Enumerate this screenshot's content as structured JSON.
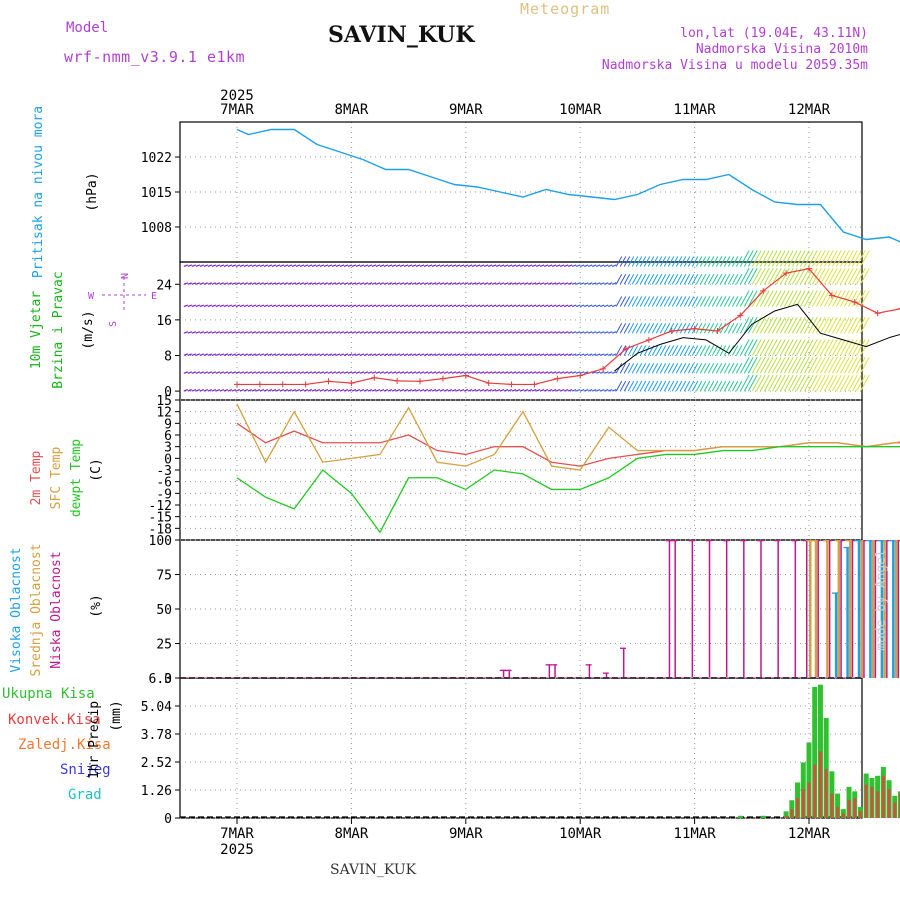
{
  "header": {
    "title": "SAVIN_KUK",
    "model_label": "Model",
    "model_name": "wrf-nmm_v3.9.1 e1km",
    "meteogram_label": "Meteogram",
    "lonlat": "lon,lat (19.04E, 43.11N)",
    "elevation": "Nadmorska Visina 2010m",
    "model_elevation": "Nadmorska Visina u modelu 2059.35m",
    "footer_title": "SAVIN_KUK",
    "credit": "made by Angel"
  },
  "colors": {
    "pressure": "#1ea0e6",
    "wind_label": "#18b418",
    "wind_speed": "#e83c3c",
    "wind_gust": "#000000",
    "temp_2m": "#e65050",
    "temp_sfc": "#d4a040",
    "temp_dew": "#22c822",
    "cloud_high": "#1ea0e6",
    "cloud_mid": "#d4a040",
    "cloud_low": "#c01890",
    "precip_total": "#30c030",
    "precip_conv": "#e84040",
    "precip_frozen": "#f07830",
    "precip_snow": "#3a3ae0",
    "precip_hail": "#20c0c0",
    "legend_purple": "#b040d0",
    "meteogram_color": "#e0c080"
  },
  "time_axis": {
    "year": "2025",
    "days": [
      "7MAR",
      "8MAR",
      "9MAR",
      "10MAR",
      "11MAR",
      "12MAR"
    ]
  },
  "compass": {
    "n": "N",
    "e": "E",
    "w": "W",
    "s": "S"
  },
  "chart_data": [
    {
      "type": "line",
      "name": "pressure",
      "label": "Pritisak na nivou mora",
      "ylabel": "(hPa)",
      "yticks": [
        1008,
        1015,
        1022
      ],
      "ylim": [
        1001,
        1029
      ],
      "x_days": [
        0,
        0.1,
        0.3,
        0.5,
        0.7,
        0.9,
        1.1,
        1.3,
        1.5,
        1.7,
        1.9,
        2.1,
        2.3,
        2.5,
        2.7,
        2.9,
        3.1,
        3.3,
        3.5,
        3.7,
        3.9,
        4.1,
        4.3,
        4.5,
        4.7,
        4.9,
        5.1,
        5.3,
        5.5,
        5.7,
        5.9
      ],
      "values": [
        1027.5,
        1026.5,
        1027.5,
        1027.5,
        1024.5,
        1023,
        1021.5,
        1019.5,
        1019.5,
        1018,
        1016.5,
        1016,
        1015,
        1014,
        1015.5,
        1014.5,
        1014,
        1013.5,
        1014.5,
        1016.5,
        1017.5,
        1017.5,
        1018.5,
        1015.5,
        1013,
        1012.5,
        1012.5,
        1007,
        1005.5,
        1006,
        1004
      ]
    },
    {
      "type": "line",
      "name": "wind",
      "label": "10m Vjetar Brzina i Pravac",
      "ylabel": "(m/s)",
      "yticks": [
        0,
        8,
        16,
        24
      ],
      "ylim": [
        -2,
        29
      ],
      "x_days": [
        0,
        0.2,
        0.4,
        0.6,
        0.8,
        1.0,
        1.2,
        1.4,
        1.6,
        1.8,
        2.0,
        2.2,
        2.4,
        2.6,
        2.8,
        3.0,
        3.2,
        3.4,
        3.6,
        3.8,
        4.0,
        4.2,
        4.4,
        4.6,
        4.8,
        5.0,
        5.2,
        5.4,
        5.6,
        5.8,
        5.95
      ],
      "speed": [
        1.5,
        1.5,
        1.5,
        1.5,
        2.2,
        1.8,
        3,
        2.3,
        2.2,
        2.8,
        3.5,
        1.8,
        1.5,
        1.5,
        2.8,
        3.5,
        5,
        9.5,
        11.5,
        13.5,
        14,
        13.5,
        17,
        22.5,
        26.5,
        27.5,
        21.5,
        20,
        17.5,
        18.5,
        18
      ],
      "gust_x_days": [
        3.3,
        3.5,
        3.7,
        3.9,
        4.1,
        4.3,
        4.5,
        4.7,
        4.9,
        5.1,
        5.3,
        5.5,
        5.7,
        5.9,
        5.95
      ],
      "gust": [
        4.5,
        8.5,
        10.5,
        12,
        11.5,
        8.5,
        15,
        18,
        19.5,
        13,
        11.5,
        10,
        12,
        13.5,
        14
      ]
    },
    {
      "type": "line",
      "name": "temperature",
      "label": "2m Temp / SFC Temp / dewpt Temp",
      "ylabel": "(C)",
      "yticks": [
        -18,
        -15,
        -12,
        -9,
        -6,
        -3,
        0,
        3,
        6,
        9,
        12,
        15
      ],
      "ylim": [
        -21,
        15
      ],
      "x_days": [
        0,
        0.25,
        0.5,
        0.75,
        1.0,
        1.25,
        1.5,
        1.75,
        2.0,
        2.25,
        2.5,
        2.75,
        3.0,
        3.25,
        3.5,
        3.75,
        4.0,
        4.25,
        4.5,
        4.75,
        5.0,
        5.25,
        5.5,
        5.75,
        5.95
      ],
      "series": [
        {
          "name": "2m Temp",
          "values": [
            9,
            4,
            7,
            4,
            4,
            4,
            6,
            2,
            1,
            3,
            3,
            -1,
            -2,
            0,
            1,
            2,
            2,
            3,
            3,
            3,
            4,
            4,
            3,
            4,
            4
          ]
        },
        {
          "name": "SFC Temp",
          "values": [
            14,
            -1,
            12,
            -1,
            0,
            1,
            13,
            -1,
            -2,
            1,
            12,
            -2,
            -3,
            8,
            2,
            2,
            2,
            3,
            3,
            3,
            4,
            4,
            3,
            4,
            5
          ]
        },
        {
          "name": "dewpt Temp",
          "values": [
            -5,
            -10,
            -13,
            -3,
            -9,
            -19,
            -5,
            -5,
            -8,
            -3,
            -4,
            -8,
            -8,
            -5,
            0,
            1,
            1,
            2,
            2,
            3,
            3,
            3,
            3,
            3,
            3
          ]
        }
      ]
    },
    {
      "type": "bar",
      "name": "clouds",
      "label": "Visoka / Srednja / Niska Oblacnost",
      "ylabel": "(%)",
      "yticks": [
        0,
        25,
        50,
        75,
        100
      ],
      "ylim": [
        0,
        100
      ],
      "series": [
        {
          "name": "Niska Oblacnost",
          "x_days": [
            2.35,
            2.4,
            2.75,
            2.8,
            3.1,
            3.25,
            3.4,
            3.8,
            3.85,
            4.0,
            4.15,
            4.3,
            4.45,
            4.6,
            4.75,
            4.9,
            5.0,
            5.1,
            5.2,
            5.3,
            5.4,
            5.5,
            5.6,
            5.7,
            5.8,
            5.9
          ],
          "values": [
            6,
            6,
            10,
            10,
            10,
            4,
            22,
            100,
            100,
            100,
            100,
            100,
            100,
            100,
            100,
            100,
            100,
            100,
            100,
            100,
            100,
            100,
            100,
            100,
            100,
            100
          ]
        },
        {
          "name": "Srednja Oblacnost",
          "x_days": [
            5.0,
            5.05,
            5.15,
            5.25,
            5.35,
            5.45,
            5.55,
            5.65,
            5.75,
            5.85,
            5.95
          ],
          "values": [
            100,
            100,
            100,
            100,
            100,
            100,
            100,
            100,
            100,
            100,
            100
          ]
        },
        {
          "name": "Visoka Oblacnost",
          "x_days": [
            5.2,
            5.3,
            5.4,
            5.5,
            5.6,
            5.7,
            5.8,
            5.9,
            5.95
          ],
          "values": [
            62,
            95,
            100,
            100,
            100,
            100,
            100,
            100,
            35
          ]
        }
      ]
    },
    {
      "type": "bar",
      "name": "precipitation",
      "label": "1hr Precip",
      "ylabel": "(mm)",
      "yticks": [
        0,
        1.26,
        2.52,
        3.78,
        5.04,
        6.3
      ],
      "ylim": [
        0,
        6.3
      ],
      "legend": [
        "Ukupna Kisa",
        "Konvek.Kisa",
        "Zaledj.Kisa",
        "Snijeg",
        "Grad"
      ],
      "x_days": [
        4.4,
        4.6,
        4.8,
        4.85,
        4.9,
        4.95,
        5.0,
        5.05,
        5.1,
        5.15,
        5.2,
        5.25,
        5.3,
        5.35,
        5.4,
        5.45,
        5.5,
        5.55,
        5.6,
        5.65,
        5.7,
        5.75,
        5.8,
        5.85,
        5.9,
        5.95
      ],
      "series": [
        {
          "name": "Ukupna Kisa",
          "values": [
            0.1,
            0.1,
            0.3,
            0.8,
            1.6,
            2.5,
            3.4,
            5.9,
            6.0,
            4.5,
            2.1,
            1.1,
            0.4,
            1.4,
            1.2,
            0.5,
            2.0,
            1.8,
            1.9,
            2.3,
            1.7,
            1.0,
            1.2,
            0.8,
            1.7,
            0.9
          ]
        },
        {
          "name": "Konvek.Kisa",
          "values": [
            0,
            0,
            0.1,
            0.4,
            0.9,
            1.3,
            1.6,
            2.4,
            3.0,
            2.2,
            1.1,
            0.5,
            0.2,
            0.8,
            0.9,
            0.3,
            1.5,
            1.4,
            1.2,
            1.9,
            1.3,
            0.7,
            1.1,
            0.6,
            1.5,
            0.8
          ]
        }
      ]
    }
  ]
}
